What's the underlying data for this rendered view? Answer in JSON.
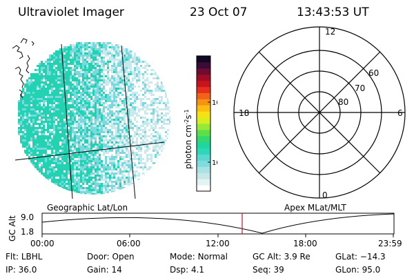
{
  "header": {
    "instrument": "Ultraviolet Imager",
    "date": "23 Oct 07",
    "time": "13:43:53 UT"
  },
  "colorbar": {
    "unit_label": "photon cm",
    "exp1": "-2",
    "mid": "s",
    "exp2": "-1",
    "ticks": [
      "100",
      "10"
    ],
    "colors": [
      "#ffffff",
      "#e3f2f3",
      "#c7e6e8",
      "#a9e2e4",
      "#7fdcdc",
      "#5ad8cf",
      "#2fd7b9",
      "#20d69f",
      "#35d86e",
      "#5be04a",
      "#98e83a",
      "#d6ee1f",
      "#f6e116",
      "#fbbd10",
      "#f79313",
      "#f06318",
      "#e6301d",
      "#c8141d",
      "#a00b25",
      "#6f0b31",
      "#3a0b36",
      "#120823"
    ]
  },
  "image_panel": {
    "label": "Geographic Lat/Lon",
    "colors": {
      "bright": "#22d2b0",
      "mid": "#7ad8df",
      "faint": "#c9e9ec"
    }
  },
  "polar_plot": {
    "label": "Apex MLat/MLT",
    "mlt_labels": {
      "top": "12",
      "left": "18",
      "right": "6",
      "bottom": "0"
    },
    "lat_labels": [
      "60",
      "70",
      "80"
    ]
  },
  "timeline": {
    "ylabel": "GC Alt",
    "y_ticks": [
      "9.0",
      "1.8"
    ],
    "x_ticks": [
      "00:00",
      "06:00",
      "12:00",
      "18:00",
      "23:59"
    ],
    "current_time_color": "#c8102e"
  },
  "info": {
    "flt_label": "Flt:",
    "flt_value": "LBHL",
    "door_label": "Door:",
    "door_value": "Open",
    "mode_label": "Mode:",
    "mode_value": "Normal",
    "gcalt_label": "GC Alt:",
    "gcalt_value": "3.9 Re",
    "glat_label": "GLat:",
    "glat_value": "−14.3",
    "ip_label": "IP:",
    "ip_value": "36.0",
    "gain_label": "Gain:",
    "gain_value": "14",
    "dsp_label": "Dsp:",
    "dsp_value": "4.1",
    "seq_label": "Seq:",
    "seq_value": "39",
    "glon_label": "GLon:",
    "glon_value": "95.0"
  }
}
